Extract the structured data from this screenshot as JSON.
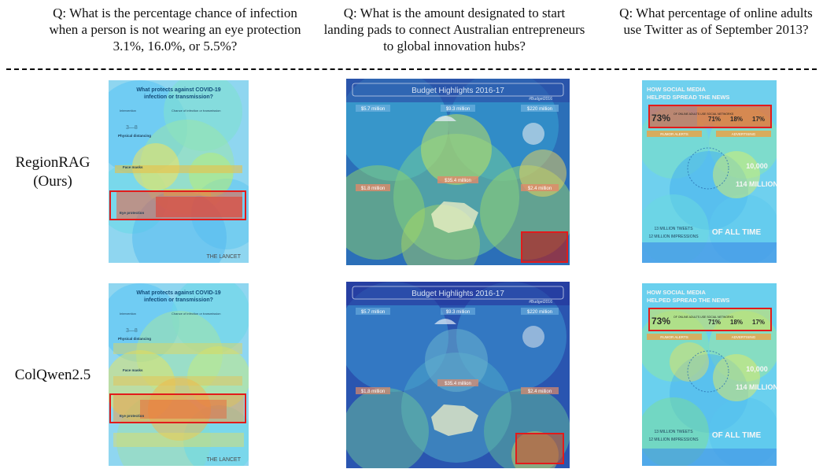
{
  "questions": [
    "Q: What is the percentage chance of infection when a person is not wearing an eye protection 3.1%, 16.0%, or 5.5%?",
    "Q: What is the amount designated to start landing pads to connect Australian entrepreneurs to global innovation hubs?",
    "Q: What percentage of online adults use Twitter as of September 2013?"
  ],
  "rows": [
    {
      "label_line1": "RegionRAG",
      "label_line2": "(Ours)"
    },
    {
      "label_line1": "ColQwen2.5",
      "label_line2": ""
    }
  ],
  "covid": {
    "title_line1": "What protects against COVID-19",
    "title_line2": "infection or transmission?",
    "col_intervention": "Intervention",
    "col_chance": "Chance of infection or transmission",
    "row_distancing": "Physical distancing",
    "row_masks": "Face masks",
    "row_eye": "Eye protection",
    "distance_marker": "3—8",
    "publisher": "THE LANCET"
  },
  "budget": {
    "title": "Budget Highlights 2016-17",
    "hashtag": "#Budget2016",
    "amounts": [
      "$5.7 million",
      "$9.3 million",
      "$220 million",
      "$1.8 million",
      "$35.4 million",
      "$2.4 million"
    ]
  },
  "social": {
    "title_line1": "HOW SOCIAL MEDIA",
    "title_line2": "HELPED SPREAD THE NEWS",
    "stat_main": "73%",
    "stat_main_caption": "OF ONLINE ADULTS USE SOCIAL NETWORKS",
    "stat_b": "71%",
    "stat_c": "18%",
    "stat_d": "17%",
    "section_left": "RUMOR ALERTS",
    "section_right": "ADVERTISING",
    "big_number": "10,000",
    "million_text": "114 MILLION",
    "tweets": "13 MILLION TWEETS",
    "impressions": "12 MILLION IMPRESSIONS",
    "all_time": "OF ALL TIME"
  },
  "colors": {
    "highlight_box": "#e21b1b",
    "divider": "#000000"
  }
}
